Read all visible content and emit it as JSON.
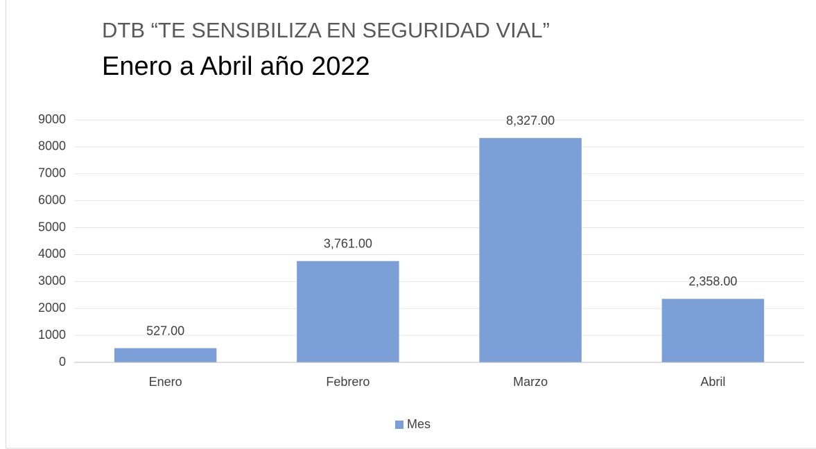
{
  "chart_data": {
    "type": "bar",
    "title": "DTB “TE SENSIBILIZA EN SEGURIDAD VIAL”",
    "subtitle": "Enero a Abril año 2022",
    "categories": [
      "Enero",
      "Febrero",
      "Marzo",
      "Abril"
    ],
    "series": [
      {
        "name": "Mes",
        "color": "#7b9fd6",
        "values": [
          527,
          3761,
          8327,
          2358
        ],
        "value_labels": [
          "527.00",
          "3,761.00",
          "8,327.00",
          "2,358.00"
        ]
      }
    ],
    "ylim": [
      0,
      9000
    ],
    "yticks": [
      0,
      1000,
      2000,
      3000,
      4000,
      5000,
      6000,
      7000,
      8000,
      9000
    ],
    "grid": true,
    "legend": "bottom"
  }
}
